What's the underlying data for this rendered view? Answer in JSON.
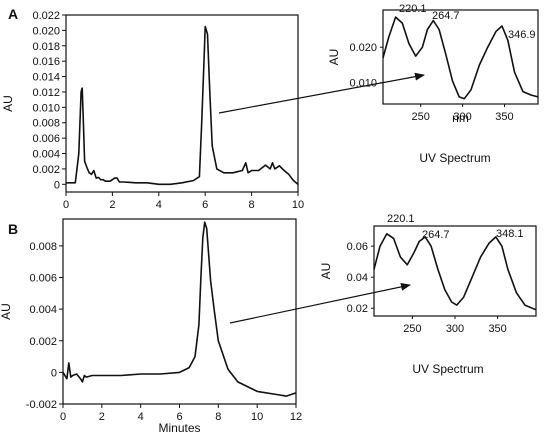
{
  "chart_data": [
    {
      "id": "A-chrom",
      "type": "line",
      "panel": "A",
      "ylabel": "AU",
      "xlabel": "",
      "xlim": [
        0,
        10
      ],
      "ylim": [
        -0.001,
        0.022
      ],
      "xticks": [
        0,
        2,
        4,
        6,
        8,
        10
      ],
      "yticks": [
        0,
        0.002,
        0.004,
        0.006,
        0.008,
        0.01,
        0.012,
        0.014,
        0.016,
        0.018,
        0.02,
        0.022
      ],
      "ytick_labels": [
        "0",
        "0.002",
        "0.004",
        "0.006",
        "0.008",
        "0.010",
        "0.012",
        "0.014",
        "0.016",
        "0.018",
        "0.020",
        "0.022"
      ],
      "series": [
        {
          "x": [
            0,
            0.4,
            0.55,
            0.65,
            0.7,
            0.75,
            0.8,
            0.9,
            1.0,
            1.1,
            1.2,
            1.3,
            1.4,
            1.5,
            1.6,
            1.7,
            1.9,
            2.1,
            2.2,
            2.3,
            2.5,
            3.0,
            3.5,
            4.0,
            4.5,
            5.0,
            5.5,
            5.75,
            5.85,
            5.95,
            6.0,
            6.1,
            6.2,
            6.3,
            6.5,
            6.8,
            7.2,
            7.6,
            7.75,
            7.85,
            8.0,
            8.3,
            8.6,
            8.8,
            8.9,
            9.0,
            9.2,
            9.4,
            9.6,
            9.8,
            10.0
          ],
          "y": [
            0.0002,
            0.0002,
            0.004,
            0.012,
            0.0125,
            0.008,
            0.003,
            0.0022,
            0.0015,
            0.0013,
            0.0018,
            0.0008,
            0.0009,
            0.0006,
            0.0006,
            0.0004,
            0.0004,
            0.0008,
            0.0008,
            0.0003,
            0.0003,
            0.0002,
            0.0002,
            0.0,
            0.0,
            0.0002,
            0.0005,
            0.001,
            0.008,
            0.016,
            0.0205,
            0.0195,
            0.012,
            0.005,
            0.002,
            0.0015,
            0.0015,
            0.0018,
            0.0028,
            0.0015,
            0.0018,
            0.0018,
            0.0025,
            0.002,
            0.0028,
            0.002,
            0.0024,
            0.0018,
            0.0013,
            0.0005,
            0.0
          ]
        }
      ]
    },
    {
      "id": "A-uv",
      "type": "line",
      "title": "UV Spectrum",
      "xlabel": "nm",
      "ylabel": "AU",
      "xlim": [
        205,
        390
      ],
      "ylim": [
        0.004,
        0.0305
      ],
      "xticks": [
        250,
        300,
        350
      ],
      "yticks": [
        0.01,
        0.02
      ],
      "ytick_labels": [
        "0.010",
        "0.020"
      ],
      "annotations": [
        "220.1",
        "264.7",
        "346.9"
      ],
      "series": [
        {
          "x": [
            205,
            212,
            220,
            228,
            236,
            244,
            252,
            258,
            265,
            272,
            280,
            288,
            296,
            302,
            310,
            320,
            330,
            340,
            347,
            354,
            362,
            372,
            382,
            390
          ],
          "y": [
            0.017,
            0.023,
            0.0285,
            0.0268,
            0.021,
            0.0175,
            0.02,
            0.025,
            0.0275,
            0.025,
            0.018,
            0.0105,
            0.006,
            0.0055,
            0.008,
            0.015,
            0.02,
            0.0245,
            0.026,
            0.022,
            0.013,
            0.0075,
            0.0065,
            0.006
          ]
        }
      ]
    },
    {
      "id": "B-chrom",
      "type": "line",
      "panel": "B",
      "ylabel": "AU",
      "xlabel": "Minutes",
      "xlim": [
        0,
        12
      ],
      "ylim": [
        -0.002,
        0.0097
      ],
      "xticks": [
        0,
        2,
        4,
        6,
        8,
        10,
        12
      ],
      "yticks": [
        -0.002,
        0,
        0.002,
        0.004,
        0.006,
        0.008
      ],
      "ytick_labels": [
        "-0.002",
        "0",
        "0.002",
        "0.004",
        "0.006",
        "0.008"
      ],
      "series": [
        {
          "x": [
            0,
            0.2,
            0.3,
            0.4,
            0.5,
            0.7,
            0.9,
            1.0,
            1.1,
            1.2,
            1.5,
            2.0,
            3.0,
            4.0,
            5.0,
            6.0,
            6.5,
            6.8,
            7.0,
            7.1,
            7.2,
            7.3,
            7.4,
            7.5,
            7.6,
            7.8,
            8.0,
            8.5,
            9.0,
            10.0,
            11.0,
            11.5,
            12.0
          ],
          "y": [
            0.0,
            -0.0004,
            0.0006,
            -0.0003,
            -0.0002,
            -0.0001,
            -0.0004,
            -0.0006,
            -0.0002,
            -0.0003,
            -0.0002,
            -0.0002,
            -0.0002,
            -0.0001,
            -0.0001,
            0.0,
            0.0003,
            0.001,
            0.003,
            0.006,
            0.0085,
            0.0095,
            0.0091,
            0.0075,
            0.0058,
            0.0038,
            0.002,
            0.0002,
            -0.0006,
            -0.0012,
            -0.0014,
            -0.0015,
            -0.0013
          ]
        }
      ]
    },
    {
      "id": "B-uv",
      "type": "line",
      "title": "UV Spectrum",
      "xlabel": "",
      "ylabel": "AU",
      "xlim": [
        205,
        395
      ],
      "ylim": [
        0.015,
        0.073
      ],
      "xticks": [
        250,
        300,
        350
      ],
      "yticks": [
        0.02,
        0.04,
        0.06
      ],
      "ytick_labels": [
        "0.02",
        "0.04",
        "0.06"
      ],
      "annotations": [
        "220.1",
        "264.7",
        "348.1"
      ],
      "series": [
        {
          "x": [
            205,
            212,
            220,
            228,
            236,
            244,
            252,
            258,
            265,
            272,
            280,
            288,
            296,
            302,
            310,
            320,
            330,
            340,
            348,
            355,
            362,
            372,
            382,
            395
          ],
          "y": [
            0.045,
            0.06,
            0.068,
            0.065,
            0.053,
            0.048,
            0.056,
            0.063,
            0.066,
            0.06,
            0.045,
            0.032,
            0.024,
            0.022,
            0.027,
            0.04,
            0.053,
            0.062,
            0.066,
            0.06,
            0.045,
            0.03,
            0.022,
            0.019
          ]
        }
      ]
    }
  ]
}
